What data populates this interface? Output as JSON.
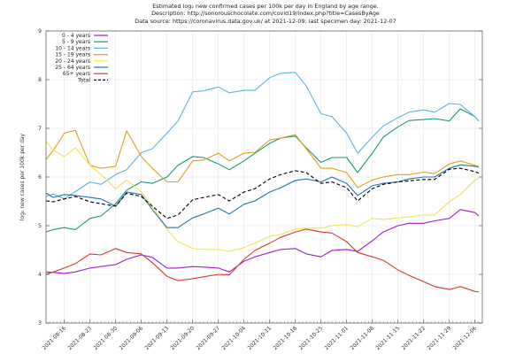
{
  "chart_data": {
    "type": "line",
    "title_lines": [
      "Estimated log₂ new confirmed cases per 100k per day in England by age range.",
      "Description: http://sonorouschocolate.com/covid19/index.php?title=CasesByAge",
      "Data source: https://coronavirus.data.gov.uk/ at 2021-12-09; last specimen day: 2021-12-07"
    ],
    "xlabel": "",
    "ylabel": "log₂ new cases per 100k per day",
    "ylim": [
      3,
      9
    ],
    "yticks": [
      "3",
      "4",
      "5",
      "6",
      "7",
      "8",
      "9"
    ],
    "xlim": [
      "2021-08-11",
      "2021-12-08"
    ],
    "xticks": [
      "2021-08-16",
      "2021-08-23",
      "2021-08-30",
      "2021-09-06",
      "2021-09-13",
      "2021-09-20",
      "2021-09-27",
      "2021-10-04",
      "2021-10-11",
      "2021-10-18",
      "2021-10-25",
      "2021-11-01",
      "2021-11-08",
      "2021-11-15",
      "2021-11-22",
      "2021-11-29",
      "2021-12-06"
    ],
    "grid": true,
    "legend_position": "top-left",
    "x": [
      "2021-08-11",
      "2021-08-13",
      "2021-08-16",
      "2021-08-19",
      "2021-08-23",
      "2021-08-26",
      "2021-08-30",
      "2021-09-02",
      "2021-09-06",
      "2021-09-09",
      "2021-09-13",
      "2021-09-16",
      "2021-09-20",
      "2021-09-23",
      "2021-09-27",
      "2021-09-30",
      "2021-10-04",
      "2021-10-07",
      "2021-10-11",
      "2021-10-14",
      "2021-10-18",
      "2021-10-21",
      "2021-10-25",
      "2021-10-28",
      "2021-11-01",
      "2021-11-04",
      "2021-11-08",
      "2021-11-11",
      "2021-11-15",
      "2021-11-18",
      "2021-11-22",
      "2021-11-25",
      "2021-11-29",
      "2021-12-02",
      "2021-12-06",
      "2021-12-07"
    ],
    "series": [
      {
        "name": "0 - 4 years",
        "color": "#9b1fd0",
        "dashed": false,
        "values": [
          4.05,
          4.04,
          4.02,
          4.05,
          4.13,
          4.16,
          4.2,
          4.31,
          4.4,
          4.35,
          4.13,
          4.13,
          4.16,
          4.15,
          4.13,
          4.05,
          4.27,
          4.36,
          4.45,
          4.51,
          4.53,
          4.42,
          4.36,
          4.49,
          4.51,
          4.47,
          4.69,
          4.87,
          5.0,
          5.05,
          5.05,
          5.1,
          5.15,
          5.33,
          5.27,
          5.2
        ]
      },
      {
        "name": "5 - 9 years",
        "color": "#139a7e",
        "dashed": false,
        "values": [
          4.87,
          4.92,
          4.96,
          4.92,
          5.15,
          5.2,
          5.45,
          5.73,
          5.9,
          5.87,
          6.0,
          6.24,
          6.42,
          6.4,
          6.27,
          6.15,
          6.33,
          6.49,
          6.69,
          6.8,
          6.84,
          6.6,
          6.3,
          6.4,
          6.4,
          6.09,
          6.49,
          6.82,
          7.03,
          7.16,
          7.18,
          7.2,
          7.15,
          7.4,
          7.24,
          7.15
        ]
      },
      {
        "name": "10 - 14 years",
        "color": "#5cb3de",
        "dashed": false,
        "values": [
          5.6,
          5.65,
          5.55,
          5.7,
          5.9,
          5.85,
          6.05,
          6.15,
          6.5,
          6.58,
          6.9,
          7.15,
          7.75,
          7.77,
          7.85,
          7.73,
          7.78,
          7.78,
          8.04,
          8.13,
          8.15,
          7.87,
          7.3,
          7.24,
          6.9,
          6.49,
          6.82,
          7.05,
          7.22,
          7.33,
          7.38,
          7.33,
          7.51,
          7.49,
          7.24,
          7.15
        ]
      },
      {
        "name": "15 - 19 years",
        "color": "#e0a11a",
        "dashed": false,
        "values": [
          6.36,
          6.55,
          6.9,
          6.96,
          6.24,
          6.18,
          6.22,
          6.95,
          6.42,
          6.18,
          5.9,
          5.9,
          6.33,
          6.35,
          6.49,
          6.33,
          6.49,
          6.51,
          6.76,
          6.8,
          6.87,
          6.58,
          6.18,
          6.18,
          6.09,
          5.78,
          5.94,
          6.0,
          6.05,
          6.05,
          6.1,
          6.07,
          6.27,
          6.33,
          6.24,
          6.22
        ]
      },
      {
        "name": "20 - 24 years",
        "color": "#f0e44f",
        "dashed": false,
        "values": [
          6.73,
          6.55,
          6.42,
          6.6,
          6.24,
          6.05,
          5.76,
          5.94,
          5.69,
          5.4,
          4.91,
          4.67,
          4.53,
          4.51,
          4.51,
          4.47,
          4.55,
          4.64,
          4.78,
          4.82,
          4.93,
          4.95,
          4.95,
          5.0,
          5.02,
          4.98,
          5.15,
          5.13,
          5.16,
          5.18,
          5.22,
          5.22,
          5.49,
          5.64,
          5.94,
          5.98
        ]
      },
      {
        "name": "25 - 64 years",
        "color": "#1f76a8",
        "dashed": false,
        "values": [
          5.67,
          5.58,
          5.64,
          5.62,
          5.58,
          5.55,
          5.4,
          5.69,
          5.64,
          5.33,
          4.96,
          4.96,
          5.16,
          5.24,
          5.36,
          5.24,
          5.44,
          5.51,
          5.69,
          5.78,
          5.93,
          5.96,
          5.9,
          6.0,
          5.87,
          5.62,
          5.82,
          5.87,
          5.9,
          5.96,
          6.0,
          6.0,
          6.18,
          6.25,
          6.22,
          6.2
        ]
      },
      {
        "name": "65+ years",
        "color": "#d63a2a",
        "dashed": false,
        "values": [
          4.0,
          4.05,
          4.13,
          4.22,
          4.42,
          4.4,
          4.53,
          4.45,
          4.42,
          4.24,
          3.96,
          3.87,
          3.91,
          3.95,
          4.0,
          3.99,
          4.31,
          4.49,
          4.64,
          4.76,
          4.87,
          4.93,
          4.87,
          4.85,
          4.67,
          4.45,
          4.36,
          4.29,
          4.09,
          3.98,
          3.85,
          3.75,
          3.69,
          3.75,
          3.65,
          3.64
        ]
      },
      {
        "name": "Total",
        "color": "#000000",
        "dashed": true,
        "values": [
          5.51,
          5.49,
          5.55,
          5.6,
          5.49,
          5.45,
          5.4,
          5.67,
          5.6,
          5.4,
          5.15,
          5.22,
          5.53,
          5.58,
          5.64,
          5.51,
          5.69,
          5.76,
          5.96,
          6.05,
          6.13,
          6.09,
          5.87,
          5.9,
          5.78,
          5.51,
          5.76,
          5.85,
          5.9,
          5.92,
          5.95,
          5.95,
          6.16,
          6.18,
          6.11,
          6.08
        ]
      }
    ]
  }
}
